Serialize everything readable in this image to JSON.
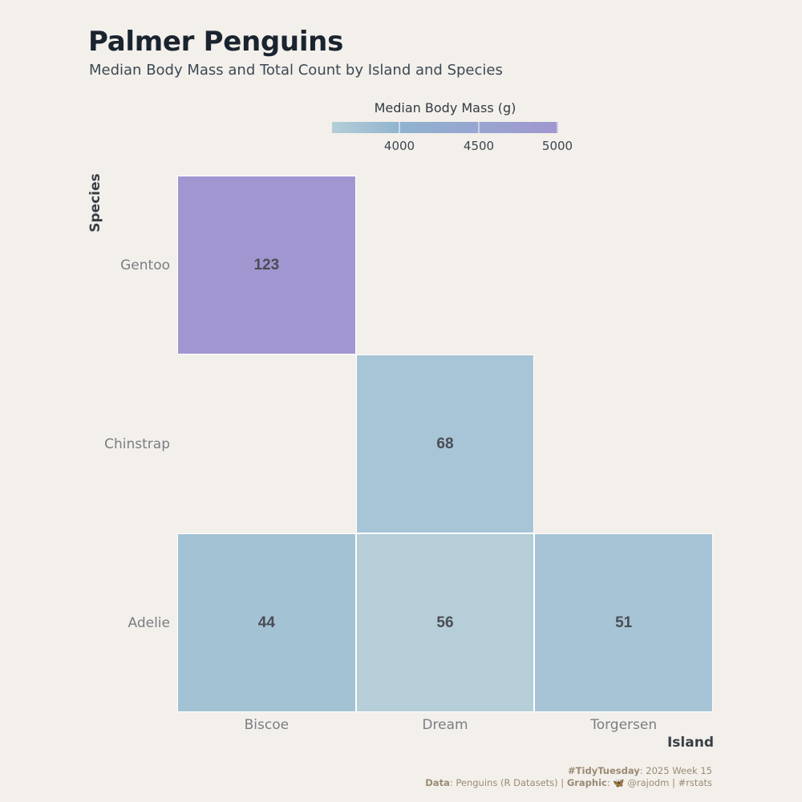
{
  "header": {
    "title": "Palmer Penguins",
    "subtitle": "Median Body Mass and Total Count by Island and Species"
  },
  "legend": {
    "title": "Median Body Mass (g)",
    "ticks": [
      "4000",
      "4500",
      "5000"
    ],
    "colors": [
      "#b5ced8",
      "#8fb3d0",
      "#a196d0"
    ]
  },
  "chart_data": {
    "type": "heatmap",
    "title": "Palmer Penguins",
    "subtitle": "Median Body Mass and Total Count by Island and Species",
    "xlabel": "Island",
    "ylabel": "Species",
    "x_categories": [
      "Biscoe",
      "Dream",
      "Torgersen"
    ],
    "y_categories": [
      "Adelie",
      "Chinstrap",
      "Gentoo"
    ],
    "color_scale": {
      "label": "Median Body Mass (g)",
      "range": [
        3600,
        5000
      ],
      "ticks": [
        4000,
        4500,
        5000
      ]
    },
    "cells": [
      {
        "island": "Biscoe",
        "species": "Adelie",
        "count": 44,
        "median_body_mass": 3750,
        "color": "#a3c2d4"
      },
      {
        "island": "Dream",
        "species": "Adelie",
        "count": 56,
        "median_body_mass": 3575,
        "color": "#b5ced8"
      },
      {
        "island": "Torgersen",
        "species": "Adelie",
        "count": 51,
        "median_body_mass": 3700,
        "color": "#a6c4d6"
      },
      {
        "island": "Dream",
        "species": "Chinstrap",
        "count": 68,
        "median_body_mass": 3700,
        "color": "#a8c5d7"
      },
      {
        "island": "Biscoe",
        "species": "Gentoo",
        "count": 123,
        "median_body_mass": 5000,
        "color": "#a196d0"
      }
    ]
  },
  "caption": {
    "line1_bold": "#TidyTuesday",
    "line1_rest": ": 2025 Week 15",
    "line2_data_label": "Data",
    "line2_data_value": ": Penguins (R Datasets) | ",
    "line2_graphic_label": "Graphic",
    "line2_graphic_value": ": 🦋 @rajodm | #rstats"
  }
}
